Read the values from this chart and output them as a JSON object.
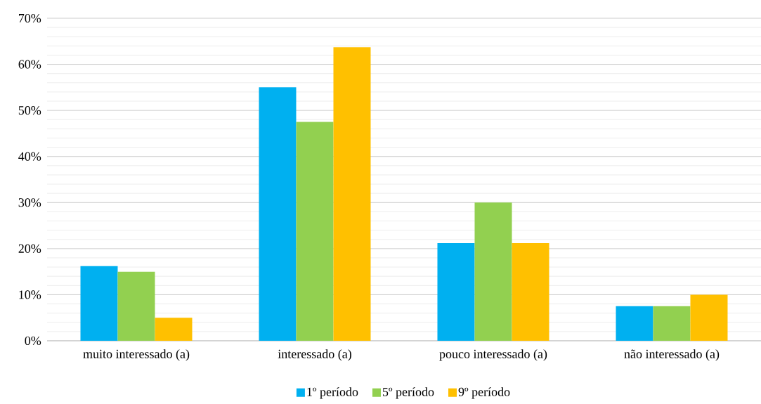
{
  "chart_data": {
    "type": "bar",
    "categories": [
      "muito interessado (a)",
      "interessado (a)",
      "pouco interessado (a)",
      "não interessado (a)"
    ],
    "series": [
      {
        "name": "1º período",
        "color": "#00b0f0",
        "values": [
          16.2,
          55,
          21.2,
          7.5
        ]
      },
      {
        "name": "5º período",
        "color": "#92d050",
        "values": [
          15,
          47.5,
          30,
          7.5
        ]
      },
      {
        "name": "9º período",
        "color": "#ffc000",
        "values": [
          5,
          63.7,
          21.2,
          10
        ]
      }
    ],
    "ylim": [
      0,
      70
    ],
    "yticks": [
      {
        "value": 0,
        "label": "0%"
      },
      {
        "value": 10,
        "label": "10%"
      },
      {
        "value": 20,
        "label": "20%"
      },
      {
        "value": 30,
        "label": "30%"
      },
      {
        "value": 40,
        "label": "40%"
      },
      {
        "value": 50,
        "label": "50%"
      },
      {
        "value": 60,
        "label": "60%"
      },
      {
        "value": 70,
        "label": "70%"
      }
    ],
    "grid": true,
    "legend": "bottom"
  }
}
